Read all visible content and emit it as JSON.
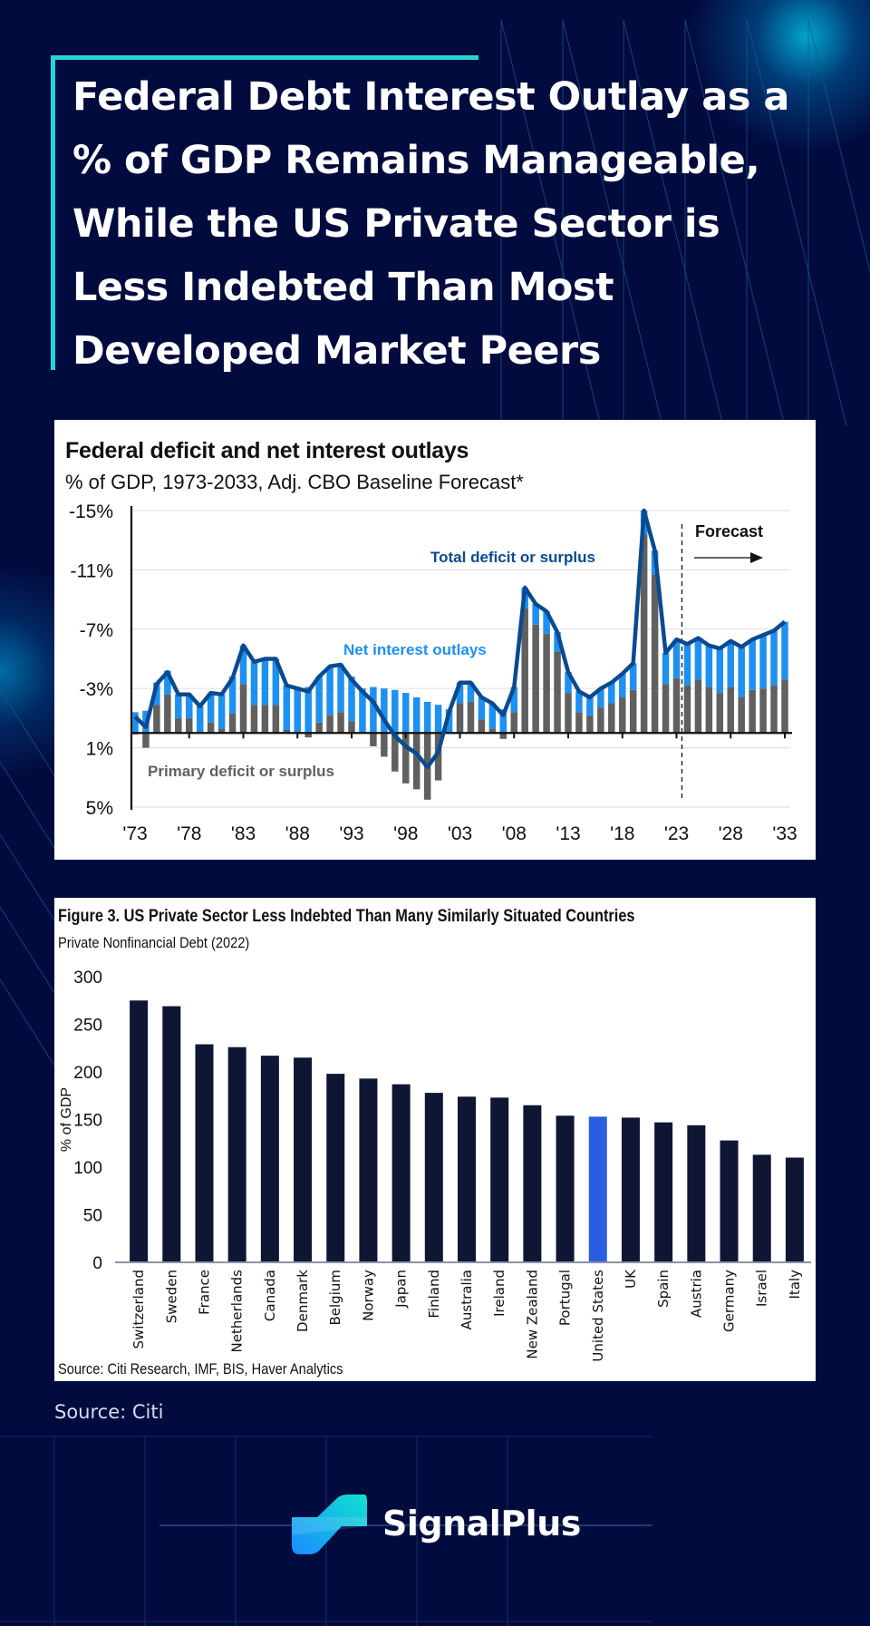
{
  "headline": "Federal Debt Interest Outlay as a % of GDP Remains Manageable, While the US Private Sector is Less Indebted Than Most Developed Market Peers",
  "footer": {
    "source": "Source: Citi",
    "brand": "SignalPlus"
  },
  "colors": {
    "background": "#020b3e",
    "accent": "#27d3d6",
    "net_interest": "#1e90f0",
    "primary": "#606060",
    "total_line": "#0a4a8f",
    "country_bar": "#0f1633",
    "us_bar": "#2a5ee0"
  },
  "chart_data": [
    {
      "type": "bar",
      "subtype": "stacked-bar-with-line",
      "title": "Federal deficit and net interest outlays",
      "subtitle": "% of GDP, 1973-2033, Adj. CBO Baseline Forecast*",
      "xlabel": "",
      "ylabel": "",
      "y_tick_labels": [
        "-15%",
        "-11%",
        "-7%",
        "-3%",
        "1%",
        "5%"
      ],
      "y_ticks": [
        15,
        11,
        7,
        3,
        -1,
        -5
      ],
      "ylim": [
        -5,
        15
      ],
      "y_axis_inverted_sign_note": "deficit plotted upward as negative %",
      "x_tick_labels": [
        "'73",
        "'78",
        "'83",
        "'88",
        "'93",
        "'98",
        "'03",
        "'08",
        "'13",
        "'18",
        "'23",
        "'28",
        "'33"
      ],
      "x": [
        1973,
        1974,
        1975,
        1976,
        1977,
        1978,
        1979,
        1980,
        1981,
        1982,
        1983,
        1984,
        1985,
        1986,
        1987,
        1988,
        1989,
        1990,
        1991,
        1992,
        1993,
        1994,
        1995,
        1996,
        1997,
        1998,
        1999,
        2000,
        2001,
        2002,
        2003,
        2004,
        2005,
        2006,
        2007,
        2008,
        2009,
        2010,
        2011,
        2012,
        2013,
        2014,
        2015,
        2016,
        2017,
        2018,
        2019,
        2020,
        2021,
        2022,
        2023,
        2024,
        2025,
        2026,
        2027,
        2028,
        2029,
        2030,
        2031,
        2032,
        2033
      ],
      "series": [
        {
          "name": "Primary deficit or surplus",
          "kind": "bar",
          "values": [
            -0.1,
            -1.0,
            1.9,
            2.6,
            1.0,
            1.0,
            0.0,
            0.7,
            0.3,
            1.3,
            3.3,
            1.9,
            1.9,
            1.9,
            0.2,
            0.0,
            -0.3,
            0.7,
            1.2,
            1.4,
            0.8,
            0.0,
            -0.9,
            -1.6,
            -2.6,
            -3.4,
            -3.8,
            -4.5,
            -3.2,
            0.0,
            2.0,
            2.1,
            0.9,
            0.3,
            -0.4,
            1.4,
            8.4,
            7.3,
            6.7,
            5.5,
            2.7,
            1.4,
            1.2,
            1.7,
            2.0,
            2.4,
            2.9,
            13.4,
            10.7,
            3.3,
            3.7,
            3.2,
            3.6,
            3.1,
            2.7,
            3.1,
            2.4,
            2.9,
            3.0,
            3.2,
            3.6
          ]
        },
        {
          "name": "Net interest outlays",
          "kind": "bar-stacked",
          "values": [
            1.4,
            1.5,
            1.5,
            1.6,
            1.6,
            1.6,
            1.8,
            2.0,
            2.3,
            2.5,
            2.6,
            2.9,
            3.1,
            3.1,
            3.0,
            3.0,
            3.1,
            3.1,
            3.3,
            3.2,
            3.0,
            3.0,
            3.1,
            3.0,
            2.9,
            2.7,
            2.4,
            2.1,
            1.9,
            1.6,
            1.4,
            1.3,
            1.5,
            1.7,
            1.6,
            1.7,
            1.4,
            1.4,
            1.5,
            1.3,
            1.4,
            1.4,
            1.2,
            1.3,
            1.4,
            1.6,
            1.8,
            1.6,
            1.6,
            2.1,
            2.6,
            2.8,
            2.8,
            2.8,
            3.0,
            3.1,
            3.4,
            3.4,
            3.6,
            3.7,
            3.9
          ]
        },
        {
          "name": "Total deficit or surplus",
          "kind": "line",
          "values": [
            1.1,
            0.4,
            3.3,
            4.1,
            2.6,
            2.6,
            1.8,
            2.7,
            2.6,
            3.7,
            5.9,
            4.8,
            5.0,
            5.0,
            3.2,
            3.0,
            2.8,
            3.8,
            4.5,
            4.6,
            3.6,
            2.8,
            2.1,
            0.9,
            -0.2,
            -0.9,
            -1.4,
            -2.3,
            -1.3,
            1.4,
            3.4,
            3.4,
            2.4,
            2.0,
            1.2,
            3.1,
            9.8,
            8.7,
            8.2,
            6.8,
            4.1,
            2.8,
            2.4,
            3.0,
            3.4,
            4.0,
            4.7,
            15.0,
            12.3,
            5.4,
            6.3,
            6.0,
            6.4,
            5.9,
            5.7,
            6.2,
            5.8,
            6.3,
            6.6,
            6.9,
            7.5
          ]
        }
      ],
      "annotations": [
        {
          "text": "Total  deficit or surplus",
          "color": "#0a4a8f"
        },
        {
          "text": "Net interest outlays",
          "color": "#1e90f0"
        },
        {
          "text": "Primary deficit or surplus",
          "color": "#606060"
        },
        {
          "text": "Forecast",
          "color": "#111111"
        }
      ],
      "forecast_start": 2023.5,
      "grid": true,
      "legend": "inline-annotations"
    },
    {
      "type": "bar",
      "title": "Figure 3. US Private Sector Less Indebted Than Many Similarly Situated Countries",
      "subtitle": "Private Nonfinancial Debt (2022)",
      "xlabel": "",
      "ylabel": "% of GDP",
      "ylim": [
        0,
        300
      ],
      "y_ticks": [
        0,
        50,
        100,
        150,
        200,
        250,
        300
      ],
      "categories": [
        "Switzerland",
        "Sweden",
        "France",
        "Netherlands",
        "Canada",
        "Denmark",
        "Belgium",
        "Norway",
        "Japan",
        "Finland",
        "Australia",
        "Ireland",
        "New Zealand",
        "Portugal",
        "United States",
        "UK",
        "Spain",
        "Austria",
        "Germany",
        "Israel",
        "Italy"
      ],
      "values": [
        275,
        269,
        229,
        226,
        217,
        215,
        198,
        193,
        187,
        178,
        174,
        173,
        165,
        154,
        153,
        152,
        147,
        144,
        128,
        113,
        110
      ],
      "highlight": "United States",
      "source": "Source: Citi Research, IMF, BIS, Haver Analytics",
      "grid": false,
      "legend": "none"
    }
  ]
}
